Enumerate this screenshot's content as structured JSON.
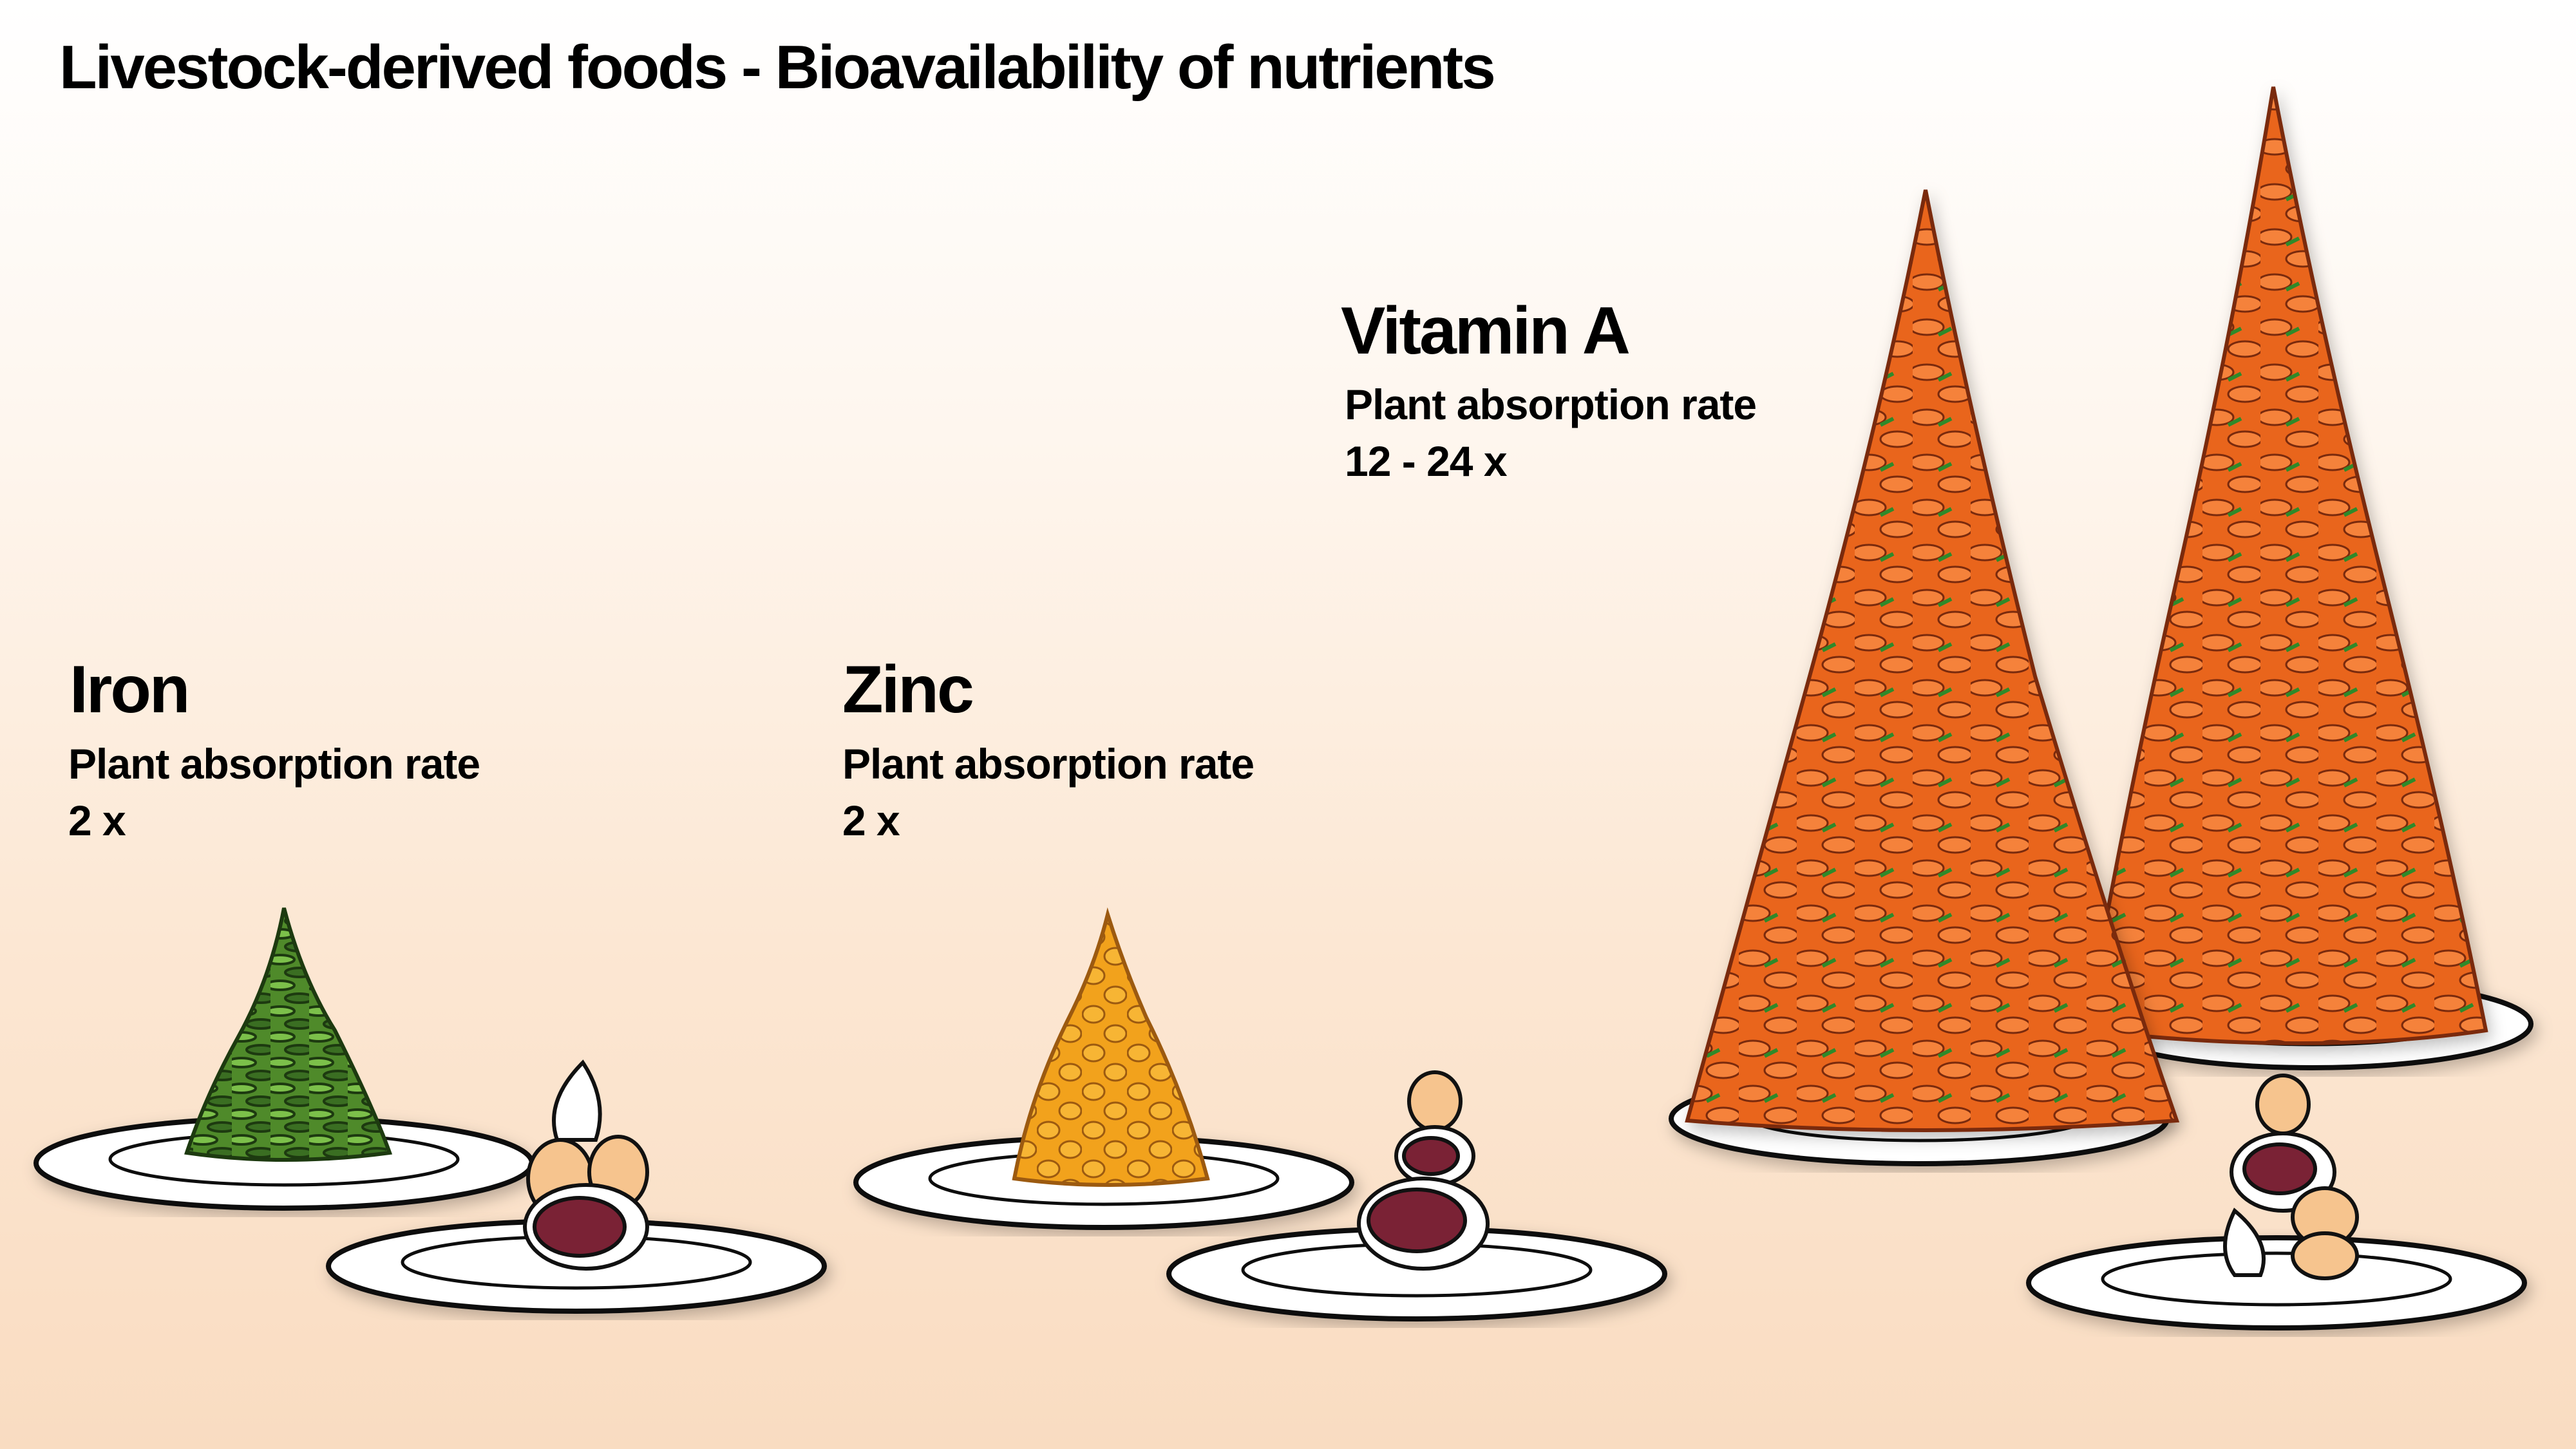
{
  "title": "Livestock-derived foods - Bioavailability of nutrients",
  "nutrients": [
    {
      "name": "Iron",
      "rate_label": "Plant absorption rate",
      "rate_value": "2 x",
      "plant_food": "leafy greens / beans",
      "plant_color": "#4f9a2f"
    },
    {
      "name": "Zinc",
      "rate_label": "Plant absorption rate",
      "rate_value": "2 x",
      "plant_food": "beans",
      "plant_color": "#f5a623"
    },
    {
      "name": "Vitamin A",
      "rate_label": "Plant absorption rate",
      "rate_value": "12 - 24 x",
      "plant_food": "carrots",
      "plant_color": "#f07a28"
    }
  ],
  "colors": {
    "meat": "#7a2235",
    "egg": "#f6c48e",
    "plate": "#ffffff",
    "outline": "#111111"
  }
}
